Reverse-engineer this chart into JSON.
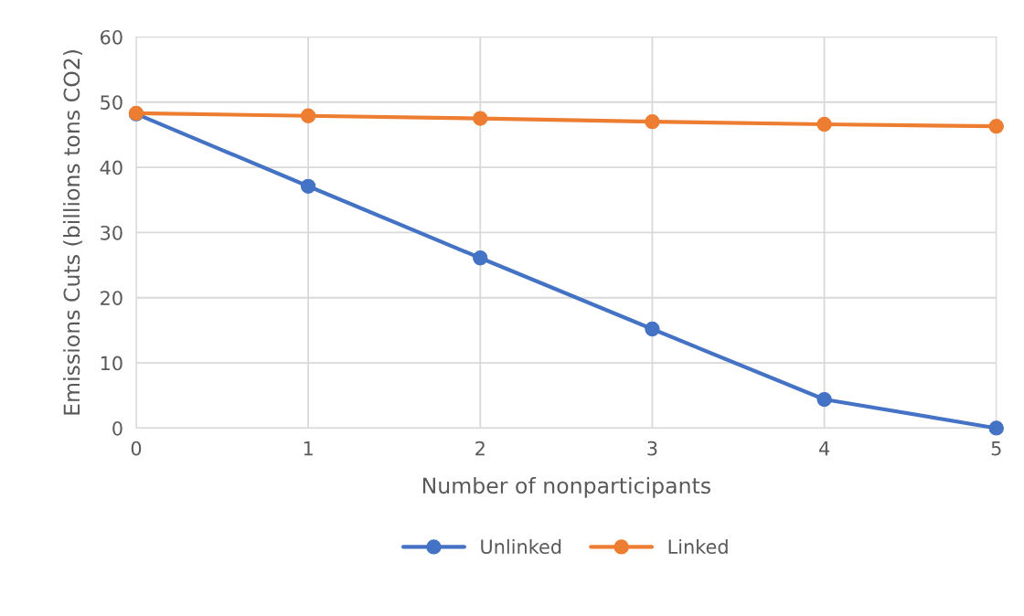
{
  "chart_data": {
    "type": "line",
    "xlabel": "Number of nonparticipants",
    "ylabel": "Emissions Cuts (billions tons CO2)",
    "x": [
      0,
      1,
      2,
      3,
      4,
      5
    ],
    "series": [
      {
        "name": "Unlinked",
        "color": "#4472c4",
        "values": [
          48.2,
          37.1,
          26.1,
          15.2,
          4.4,
          0
        ]
      },
      {
        "name": "Linked",
        "color": "#ed7d31",
        "values": [
          48.3,
          47.9,
          47.5,
          47.0,
          46.6,
          46.3
        ]
      }
    ],
    "xlim": [
      0,
      5
    ],
    "xticks": [
      0,
      1,
      2,
      3,
      4,
      5
    ],
    "ylim": [
      0,
      60
    ],
    "yticks": [
      0,
      10,
      20,
      30,
      40,
      50,
      60
    ],
    "grid": true,
    "legend": "bottom",
    "marker": "circle",
    "line_style": "solid"
  }
}
